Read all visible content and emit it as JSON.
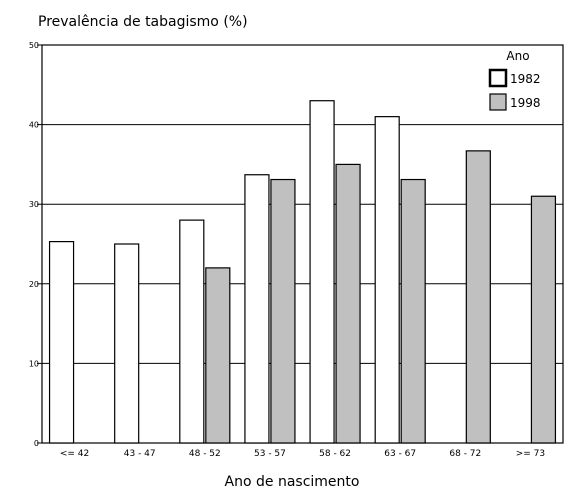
{
  "chart_data": {
    "type": "bar",
    "title": "Prevalência de tabagismo (%)",
    "xlabel": "Ano de nascimento",
    "ylabel": "",
    "ylim": [
      0,
      50
    ],
    "yticks": [
      0,
      10,
      20,
      30,
      40,
      50
    ],
    "grid": true,
    "legend": {
      "title": "Ano",
      "position": "top-right"
    },
    "categories": [
      "<= 42",
      "43 - 47",
      "48 - 52",
      "53 - 57",
      "58 - 62",
      "63 - 67",
      "68 - 72",
      ">= 73"
    ],
    "series": [
      {
        "name": "1982",
        "color": "#ffffff",
        "values": [
          25.3,
          25.0,
          28.0,
          33.7,
          43.0,
          41.0,
          null,
          null
        ]
      },
      {
        "name": "1998",
        "color": "#c0c0c0",
        "values": [
          null,
          null,
          22.0,
          33.1,
          35.0,
          33.1,
          36.7,
          31.0
        ]
      }
    ]
  }
}
